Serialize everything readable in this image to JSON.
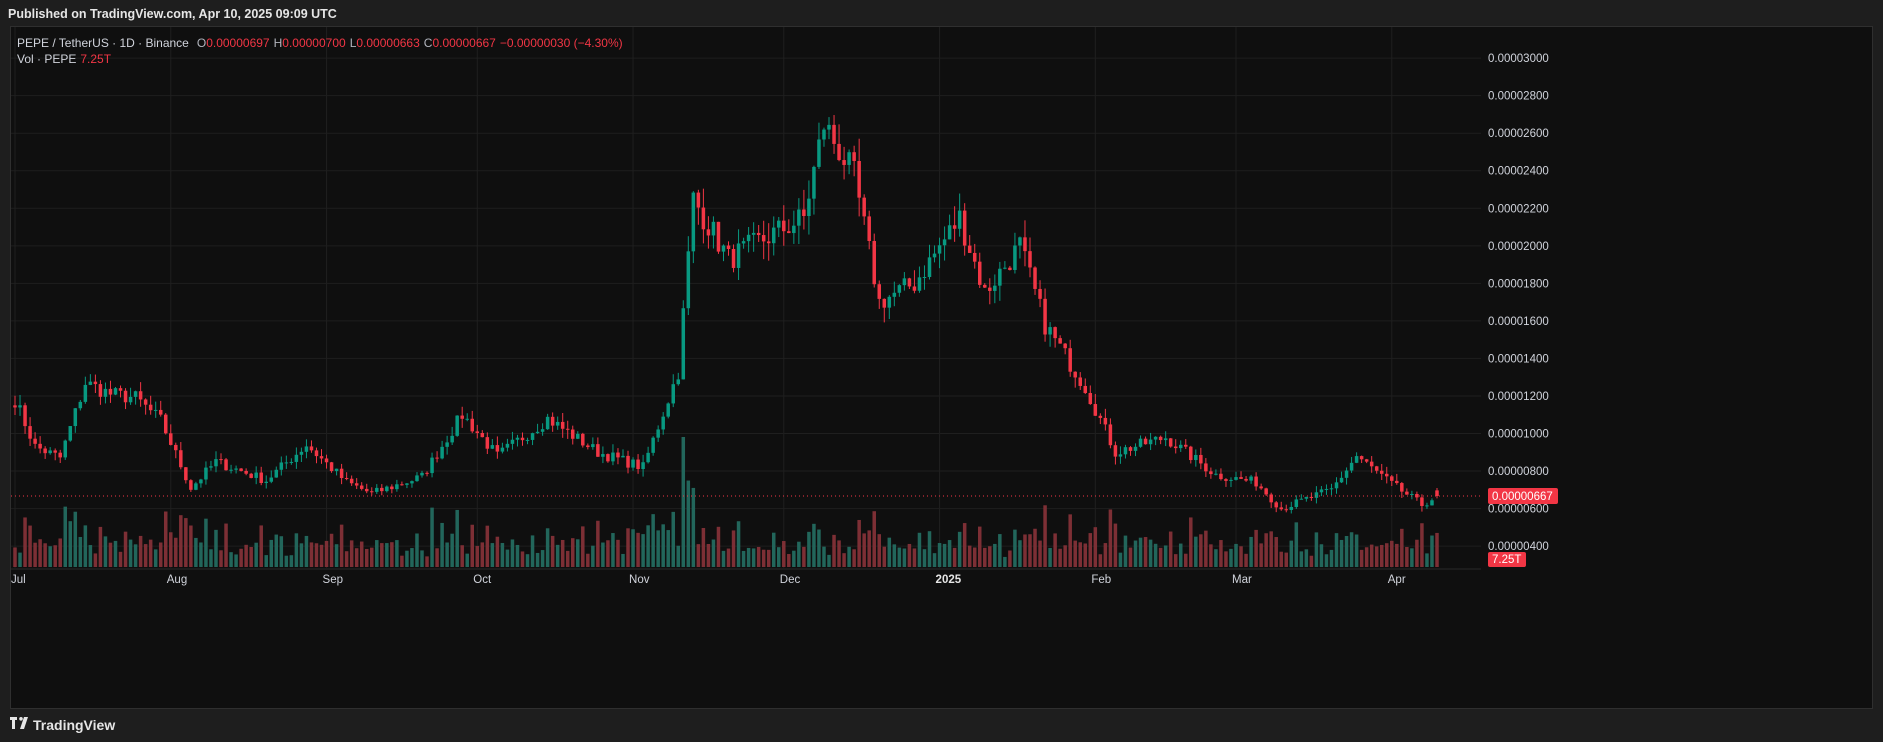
{
  "header": {
    "published": "Published on TradingView.com, Apr 10, 2025 09:09 UTC"
  },
  "legend": {
    "symbol": "PEPE / TetherUS · 1D · Binance",
    "open_label": "O",
    "open": "0.00000697",
    "high_label": "H",
    "high": "0.00000700",
    "low_label": "L",
    "low": "0.00000663",
    "close_label": "C",
    "close": "0.00000667",
    "change": "−0.00000030 (−4.30%)",
    "vol_label": "Vol · PEPE",
    "vol_value": "7.25T"
  },
  "footer": {
    "logo_icon": "tradingview-logo-icon",
    "brand": "TradingView"
  },
  "colors": {
    "up": "#089981",
    "down": "#f23645",
    "vol_up": "#22665b",
    "vol_down": "#7d2f35",
    "grid": "#1f1f1f",
    "background": "#0f0f0f"
  },
  "chart_data": {
    "type": "candlestick",
    "symbol": "PEPE / TetherUS",
    "interval": "1D",
    "exchange": "Binance",
    "y_ticks": [
      "0.00000400",
      "0.00000600",
      "0.00000800",
      "0.00001000",
      "0.00001200",
      "0.00001400",
      "0.00001600",
      "0.00001800",
      "0.00002000",
      "0.00002200",
      "0.00002400",
      "0.00002600",
      "0.00002800",
      "0.00003000"
    ],
    "ylim": [
      3.1e-06,
      3.07e-05
    ],
    "x_labels": [
      {
        "label": "Jul",
        "date": "2024-07-01"
      },
      {
        "label": "Aug",
        "date": "2024-08-01"
      },
      {
        "label": "Sep",
        "date": "2024-09-01"
      },
      {
        "label": "Oct",
        "date": "2024-10-01"
      },
      {
        "label": "Nov",
        "date": "2024-11-01"
      },
      {
        "label": "Dec",
        "date": "2024-12-01"
      },
      {
        "label": "2025",
        "date": "2025-01-01"
      },
      {
        "label": "Feb",
        "date": "2025-02-01"
      },
      {
        "label": "Mar",
        "date": "2025-03-01"
      },
      {
        "label": "Apr",
        "date": "2025-04-01"
      }
    ],
    "date_range": [
      "2024-07-01",
      "2025-04-10"
    ],
    "last_price_label": "0.00000667",
    "last_volume_label": "7.25T",
    "price_series": [
      {
        "date": "2024-07-01",
        "close": 1.18e-05
      },
      {
        "date": "2024-07-05",
        "close": 9.3e-06
      },
      {
        "date": "2024-07-10",
        "close": 8.7e-06
      },
      {
        "date": "2024-07-15",
        "close": 1.27e-05
      },
      {
        "date": "2024-07-20",
        "close": 1.21e-05
      },
      {
        "date": "2024-07-25",
        "close": 1.19e-05
      },
      {
        "date": "2024-07-30",
        "close": 1.07e-05
      },
      {
        "date": "2024-08-05",
        "close": 7.1e-06
      },
      {
        "date": "2024-08-10",
        "close": 8.5e-06
      },
      {
        "date": "2024-08-20",
        "close": 7.5e-06
      },
      {
        "date": "2024-08-28",
        "close": 9.4e-06
      },
      {
        "date": "2024-09-05",
        "close": 7.4e-06
      },
      {
        "date": "2024-09-10",
        "close": 6.8e-06
      },
      {
        "date": "2024-09-20",
        "close": 7.7e-06
      },
      {
        "date": "2024-09-28",
        "close": 1.1e-05
      },
      {
        "date": "2024-10-05",
        "close": 8.8e-06
      },
      {
        "date": "2024-10-15",
        "close": 1.08e-05
      },
      {
        "date": "2024-10-25",
        "close": 9e-06
      },
      {
        "date": "2024-11-03",
        "close": 8.2e-06
      },
      {
        "date": "2024-11-10",
        "close": 1.33e-05
      },
      {
        "date": "2024-11-13",
        "close": 2.25e-05
      },
      {
        "date": "2024-11-20",
        "close": 1.93e-05
      },
      {
        "date": "2024-11-28",
        "close": 2.05e-05
      },
      {
        "date": "2024-12-05",
        "close": 2.15e-05
      },
      {
        "date": "2024-12-09",
        "close": 2.65e-05
      },
      {
        "date": "2024-12-15",
        "close": 2.37e-05
      },
      {
        "date": "2024-12-20",
        "close": 1.7e-05
      },
      {
        "date": "2024-12-27",
        "close": 1.8e-05
      },
      {
        "date": "2025-01-05",
        "close": 2.15e-05
      },
      {
        "date": "2025-01-10",
        "close": 1.75e-05
      },
      {
        "date": "2025-01-17",
        "close": 2e-05
      },
      {
        "date": "2025-01-22",
        "close": 1.58e-05
      },
      {
        "date": "2025-01-30",
        "close": 1.25e-05
      },
      {
        "date": "2025-02-05",
        "close": 9e-06
      },
      {
        "date": "2025-02-15",
        "close": 9.8e-06
      },
      {
        "date": "2025-02-25",
        "close": 7.8e-06
      },
      {
        "date": "2025-03-05",
        "close": 7.4e-06
      },
      {
        "date": "2025-03-10",
        "close": 6e-06
      },
      {
        "date": "2025-03-20",
        "close": 7e-06
      },
      {
        "date": "2025-03-25",
        "close": 8.8e-06
      },
      {
        "date": "2025-04-01",
        "close": 7.3e-06
      },
      {
        "date": "2025-04-07",
        "close": 6.2e-06
      },
      {
        "date": "2025-04-10",
        "close": 6.67e-06
      }
    ]
  }
}
